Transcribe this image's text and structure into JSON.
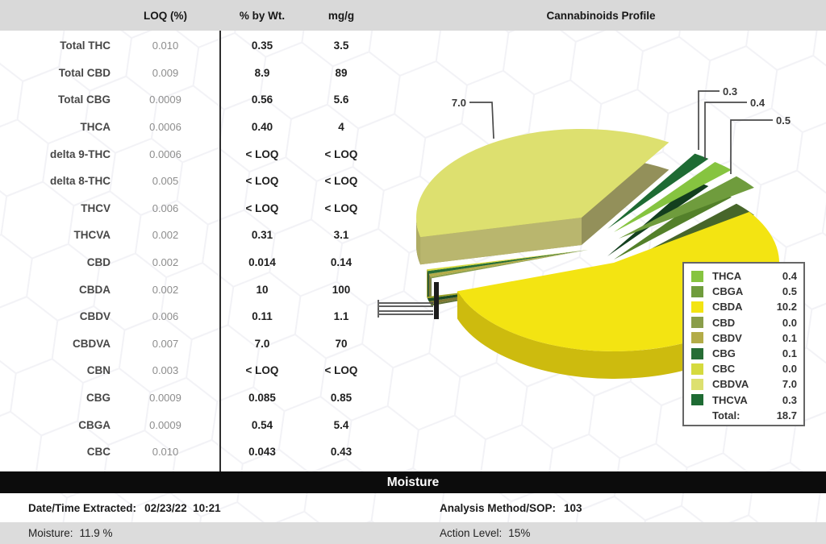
{
  "header": {
    "col_loq": "LOQ (%)",
    "col_pct": "% by Wt.",
    "col_mgg": "mg/g"
  },
  "analytes": [
    {
      "name": "Total THC",
      "loq": "0.010",
      "pct": "0.35",
      "mgg": "3.5"
    },
    {
      "name": "Total CBD",
      "loq": "0.009",
      "pct": "8.9",
      "mgg": "89"
    },
    {
      "name": "Total CBG",
      "loq": "0.0009",
      "pct": "0.56",
      "mgg": "5.6"
    },
    {
      "name": "THCA",
      "loq": "0.0006",
      "pct": "0.40",
      "mgg": "4"
    },
    {
      "name": "delta 9-THC",
      "loq": "0.0006",
      "pct": "< LOQ",
      "mgg": "< LOQ"
    },
    {
      "name": "delta 8-THC",
      "loq": "0.005",
      "pct": "< LOQ",
      "mgg": "< LOQ"
    },
    {
      "name": "THCV",
      "loq": "0.006",
      "pct": "< LOQ",
      "mgg": "< LOQ"
    },
    {
      "name": "THCVA",
      "loq": "0.002",
      "pct": "0.31",
      "mgg": "3.1"
    },
    {
      "name": "CBD",
      "loq": "0.002",
      "pct": "0.014",
      "mgg": "0.14"
    },
    {
      "name": "CBDA",
      "loq": "0.002",
      "pct": "10",
      "mgg": "100"
    },
    {
      "name": "CBDV",
      "loq": "0.006",
      "pct": "0.11",
      "mgg": "1.1"
    },
    {
      "name": "CBDVA",
      "loq": "0.007",
      "pct": "7.0",
      "mgg": "70"
    },
    {
      "name": "CBN",
      "loq": "0.003",
      "pct": "< LOQ",
      "mgg": "< LOQ"
    },
    {
      "name": "CBG",
      "loq": "0.0009",
      "pct": "0.085",
      "mgg": "0.85"
    },
    {
      "name": "CBGA",
      "loq": "0.0009",
      "pct": "0.54",
      "mgg": "5.4"
    },
    {
      "name": "CBC",
      "loq": "0.010",
      "pct": "0.043",
      "mgg": "0.43"
    }
  ],
  "chart_data": {
    "type": "pie",
    "title": "Cannabinoids Profile",
    "legend_position": "right-bottom",
    "slices": [
      {
        "name": "CBDA",
        "value": 10.2,
        "color": "#F3E412",
        "side": "#CDBB0E"
      },
      {
        "name": "CBD",
        "value": 0.0,
        "color": "#8A9E4A",
        "side": "#5E7033",
        "under": "#5E7033"
      },
      {
        "name": "CBDV",
        "value": 0.1,
        "color": "#B3AC48",
        "side": "#7D7831",
        "under": "#7D7831"
      },
      {
        "name": "CBG",
        "value": 0.1,
        "color": "#276D36",
        "side": "#1A4A24",
        "under": "#1A4A24"
      },
      {
        "name": "CBC",
        "value": 0.0,
        "color": "#D5DA3E",
        "side": "#9AA026",
        "under": "#9AA026"
      },
      {
        "name": "CBDVA",
        "value": 7.0,
        "color": "#DDE06F",
        "side": "#AFAC64",
        "under": "#93905A",
        "cut": "#B9B66E"
      },
      {
        "name": "THCVA",
        "value": 0.3,
        "color": "#1E6B33",
        "under": "#133F1E"
      },
      {
        "name": "THCA",
        "value": 0.4,
        "color": "#86C440",
        "under": "#53802A"
      },
      {
        "name": "CBGA",
        "value": 0.5,
        "color": "#6F9C3D",
        "under": "#47662A"
      }
    ],
    "legend_entries": [
      {
        "name": "THCA",
        "value": "0.4"
      },
      {
        "name": "CBGA",
        "value": "0.5"
      },
      {
        "name": "CBDA",
        "value": "10.2"
      },
      {
        "name": "CBD",
        "value": "0.0"
      },
      {
        "name": "CBDV",
        "value": "0.1"
      },
      {
        "name": "CBG",
        "value": "0.1"
      },
      {
        "name": "CBC",
        "value": "0.0"
      },
      {
        "name": "CBDVA",
        "value": "7.0"
      },
      {
        "name": "THCVA",
        "value": "0.3"
      }
    ],
    "total_label": "Total:",
    "total_value": "18.7",
    "callouts": {
      "cbdva": "7.0",
      "thcva": "0.3",
      "thca": "0.4",
      "cbga": "0.5"
    }
  },
  "moisture": {
    "section_title": "Moisture",
    "date_label": "Date/Time Extracted:",
    "date_value": "02/23/22  10:21",
    "method_label": "Analysis Method/SOP:",
    "method_value": "103",
    "moisture_label": "Moisture:",
    "moisture_value": "11.9 %",
    "action_label": "Action Level:",
    "action_value": "15%"
  }
}
